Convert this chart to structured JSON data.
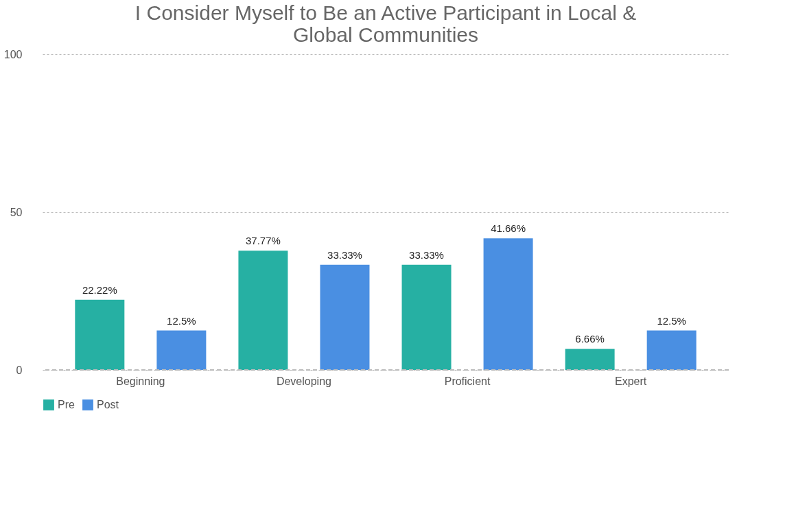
{
  "chart_data": {
    "type": "bar",
    "title": "I Consider Myself to Be an Active Participant in Local & Global Communities",
    "categories": [
      "Beginning",
      "Developing",
      "Proficient",
      "Expert"
    ],
    "series": [
      {
        "name": "Pre",
        "color": "#26b0a3",
        "values": [
          22.22,
          37.77,
          33.33,
          6.66
        ],
        "value_labels": [
          "22.22%",
          "37.77%",
          "33.33%",
          "6.66%"
        ]
      },
      {
        "name": "Post",
        "color": "#4a8fe2",
        "values": [
          12.5,
          33.33,
          41.66,
          12.5
        ],
        "value_labels": [
          "12.5%",
          "33.33%",
          "41.66%",
          "12.5%"
        ]
      }
    ],
    "ylim": [
      0,
      100
    ],
    "yticks": [
      0,
      50,
      100
    ],
    "grid": "y",
    "legend": "bottom"
  }
}
